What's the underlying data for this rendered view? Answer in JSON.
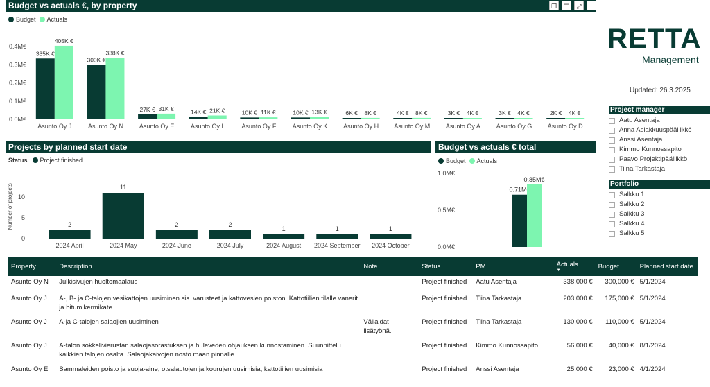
{
  "budget_chart": {
    "title": "Budget vs actuals €, by property",
    "legend": {
      "budget": "Budget",
      "actuals": "Actuals"
    },
    "toolbar": [
      "copy-icon",
      "filter-icon",
      "expand-icon",
      "more-icon"
    ],
    "toolbar_glyphs": [
      "❐",
      "☰",
      "⤢",
      "…"
    ],
    "chart_data": {
      "type": "bar",
      "categories": [
        "Asunto Oy J",
        "Asunto Oy N",
        "Asunto Oy E",
        "Asunto Oy L",
        "Asunto Oy F",
        "Asunto Oy K",
        "Asunto Oy H",
        "Asunto Oy M",
        "Asunto Oy A",
        "Asunto Oy G",
        "Asunto Oy D"
      ],
      "series": [
        {
          "name": "Budget",
          "values": [
            335,
            300,
            27,
            14,
            10,
            10,
            6,
            4,
            3,
            3,
            2
          ],
          "labels": [
            "335K €",
            "300K €",
            "27K €",
            "14K €",
            "10K €",
            "10K €",
            "6K €",
            "4K €",
            "3K €",
            "3K €",
            "2K €"
          ]
        },
        {
          "name": "Actuals",
          "values": [
            405,
            338,
            31,
            21,
            11,
            13,
            8,
            8,
            4,
            4,
            4
          ],
          "labels": [
            "405K €",
            "338K €",
            "31K €",
            "21K €",
            "11K €",
            "13K €",
            "8K €",
            "8K €",
            "4K €",
            "4K €",
            "4K €"
          ]
        }
      ],
      "yticks": [
        "0.4M€",
        "0.3M€",
        "0.2M€",
        "0.1M€",
        "0.0M€"
      ],
      "ylim": [
        0,
        420
      ]
    }
  },
  "projects_chart": {
    "title": "Projects by planned start date",
    "legend": {
      "label": "Status",
      "item": "Project finished"
    },
    "chart_data": {
      "type": "bar",
      "categories": [
        "2024 April",
        "2024 May",
        "2024 June",
        "2024 July",
        "2024 August",
        "2024 September",
        "2024 October"
      ],
      "values": [
        2,
        11,
        2,
        2,
        1,
        1,
        1
      ],
      "ylabel": "Number of projects",
      "yticks": [
        "10",
        "5",
        "0"
      ],
      "ylim": [
        0,
        12
      ]
    }
  },
  "total_chart": {
    "title": "Budget vs actuals € total",
    "legend": {
      "budget": "Budget",
      "actuals": "Actuals"
    },
    "chart_data": {
      "type": "bar",
      "categories": [
        ""
      ],
      "series": [
        {
          "name": "Budget",
          "values": [
            0.71
          ],
          "labels": [
            "0.71M€"
          ]
        },
        {
          "name": "Actuals",
          "values": [
            0.85
          ],
          "labels": [
            "0.85M€"
          ]
        }
      ],
      "yticks": [
        "1.0M€",
        "0.5M€",
        "0.0M€"
      ],
      "ylim": [
        0,
        1.0
      ]
    }
  },
  "brand": {
    "logo": "RETTA",
    "sub": "Management",
    "updated": "Updated: 26.3.2025"
  },
  "colors": {
    "dark": "#083b33",
    "light": "#7df5b0"
  },
  "project_manager": {
    "title": "Project manager",
    "items": [
      "Aatu Asentaja",
      "Anna Asiakkuuspäällikkö",
      "Anssi Asentaja",
      "Kimmo Kunnossapito",
      "Paavo Projektipäällikkö",
      "Tiina Tarkastaja"
    ]
  },
  "portfolio": {
    "title": "Portfolio",
    "items": [
      "Salkku 1",
      "Salkku 2",
      "Salkku 3",
      "Salkku 4",
      "Salkku 5"
    ]
  },
  "table": {
    "headers": [
      "Property",
      "Description",
      "Note",
      "Status",
      "PM",
      "Actuals",
      "Budget",
      "Planned start date"
    ],
    "sort_icon": "▼",
    "rows": [
      [
        "Asunto Oy N",
        "Julkisivujen huoltomaalaus",
        "",
        "Project finished",
        "Aatu Asentaja",
        "338,000 €",
        "300,000 €",
        "5/1/2024"
      ],
      [
        "Asunto Oy J",
        "A-, B- ja C-talojen vesikattojen uusiminen sis. varusteet ja kattovesien poiston. Kattotiilien tilalle vanerit ja bitumikermikate.",
        "",
        "Project finished",
        "Tiina Tarkastaja",
        "203,000 €",
        "175,000 €",
        "5/1/2024"
      ],
      [
        "Asunto Oy J",
        "A-ja C-talojen salaojien uusiminen",
        "Väliaidat lisätyönä.",
        "Project finished",
        "Tiina Tarkastaja",
        "130,000 €",
        "110,000 €",
        "5/1/2024"
      ],
      [
        "Asunto Oy J",
        "A-talon sokkelivierustan salaojasorastuksen ja huleveden ohjauksen kunnostaminen. Suunnittelu kaikkien talojen osalta. Salaojakaivojen nosto maan pinnalle.",
        "",
        "Project finished",
        "Kimmo Kunnossapito",
        "56,000 €",
        "40,000 €",
        "8/1/2024"
      ],
      [
        "Asunto Oy E",
        "Sammaleiden poisto ja suoja-aine, otsalautojen ja kourujen uusimisia, kattotiilien uusimisia",
        "",
        "Project finished",
        "Anssi Asentaja",
        "25,000 €",
        "23,000 €",
        "4/1/2024"
      ]
    ]
  }
}
